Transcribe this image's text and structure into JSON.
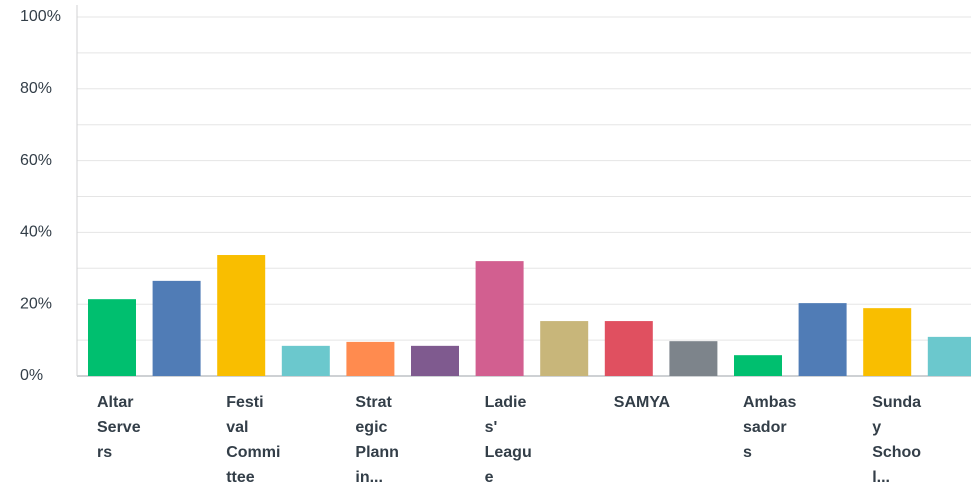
{
  "chart_data": {
    "type": "bar",
    "categories": [
      "Altar Servers",
      null,
      "Festival Committee",
      null,
      "Strategic Plannin...",
      null,
      "Ladies' League",
      null,
      "SAMYA",
      null,
      "Ambassadors",
      null,
      "Sunday School...",
      null
    ],
    "values": [
      21.4,
      26.5,
      33.7,
      8.4,
      9.5,
      8.4,
      32,
      15.3,
      15.3,
      9.7,
      5.8,
      20.3,
      18.9,
      10.9
    ],
    "colors": [
      "#00bf6f",
      "#507cb6",
      "#f9be00",
      "#6bc8cd",
      "#ff8b4f",
      "#7f5a8f",
      "#d25f90",
      "#c8b67a",
      "#e05060",
      "#7d848b",
      "#00bf6f",
      "#507cb6",
      "#f9be00",
      "#6bc8cd"
    ],
    "ylim": [
      0,
      100
    ],
    "yticks": [
      {
        "value": 0,
        "label": "0%"
      },
      {
        "value": 20,
        "label": "20%"
      },
      {
        "value": 40,
        "label": "40%"
      },
      {
        "value": 60,
        "label": "60%"
      },
      {
        "value": 80,
        "label": "80%"
      },
      {
        "value": 100,
        "label": "100%"
      }
    ],
    "minor_yticks": [
      10,
      30,
      50,
      70,
      90
    ],
    "grid": true
  }
}
